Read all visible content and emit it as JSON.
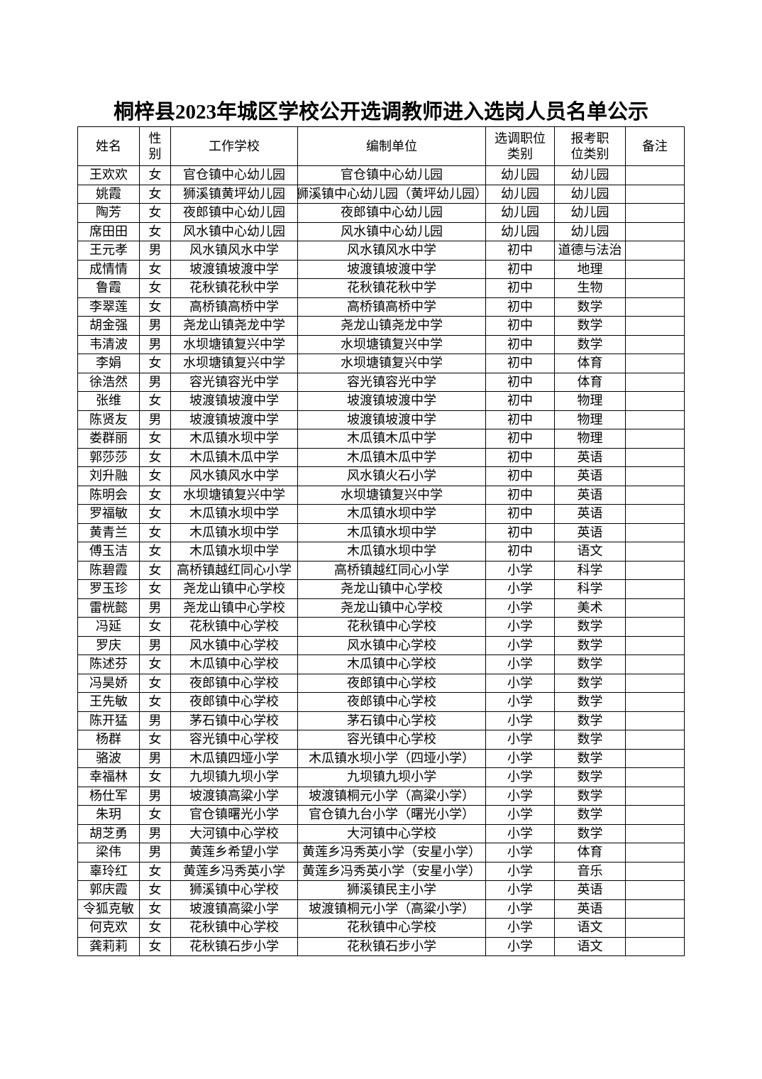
{
  "title": "桐梓县2023年城区学校公开选调教师进入选岗人员名单公示",
  "headers": [
    "姓名",
    "性别",
    "工作学校",
    "编制单位",
    "选调职位类别",
    "报考职位类别",
    "备注"
  ],
  "rows": [
    [
      "王欢欢",
      "女",
      "官仓镇中心幼儿园",
      "官仓镇中心幼儿园",
      "幼儿园",
      "幼儿园",
      ""
    ],
    [
      "姚霞",
      "女",
      "狮溪镇黄坪幼儿园",
      "狮溪镇中心幼儿园（黄坪幼儿园）",
      "幼儿园",
      "幼儿园",
      ""
    ],
    [
      "陶芳",
      "女",
      "夜郎镇中心幼儿园",
      "夜郎镇中心幼儿园",
      "幼儿园",
      "幼儿园",
      ""
    ],
    [
      "席田田",
      "女",
      "风水镇中心幼儿园",
      "风水镇中心幼儿园",
      "幼儿园",
      "幼儿园",
      ""
    ],
    [
      "王元孝",
      "男",
      "风水镇风水中学",
      "风水镇风水中学",
      "初中",
      "道德与法治",
      ""
    ],
    [
      "成情情",
      "女",
      "坡渡镇坡渡中学",
      "坡渡镇坡渡中学",
      "初中",
      "地理",
      ""
    ],
    [
      "鲁霞",
      "女",
      "花秋镇花秋中学",
      "花秋镇花秋中学",
      "初中",
      "生物",
      ""
    ],
    [
      "李翠莲",
      "女",
      "高桥镇高桥中学",
      "高桥镇高桥中学",
      "初中",
      "数学",
      ""
    ],
    [
      "胡金强",
      "男",
      "尧龙山镇尧龙中学",
      "尧龙山镇尧龙中学",
      "初中",
      "数学",
      ""
    ],
    [
      "韦清波",
      "男",
      "水坝塘镇复兴中学",
      "水坝塘镇复兴中学",
      "初中",
      "数学",
      ""
    ],
    [
      "李娟",
      "女",
      "水坝塘镇复兴中学",
      "水坝塘镇复兴中学",
      "初中",
      "体育",
      ""
    ],
    [
      "徐浩然",
      "男",
      "容光镇容光中学",
      "容光镇容光中学",
      "初中",
      "体育",
      ""
    ],
    [
      "张维",
      "女",
      "坡渡镇坡渡中学",
      "坡渡镇坡渡中学",
      "初中",
      "物理",
      ""
    ],
    [
      "陈贤友",
      "男",
      "坡渡镇坡渡中学",
      "坡渡镇坡渡中学",
      "初中",
      "物理",
      ""
    ],
    [
      "娄群丽",
      "女",
      "木瓜镇水坝中学",
      "木瓜镇木瓜中学",
      "初中",
      "物理",
      ""
    ],
    [
      "郭莎莎",
      "女",
      "木瓜镇木瓜中学",
      "木瓜镇木瓜中学",
      "初中",
      "英语",
      ""
    ],
    [
      "刘升融",
      "女",
      "风水镇风水中学",
      "风水镇火石小学",
      "初中",
      "英语",
      ""
    ],
    [
      "陈明会",
      "女",
      "水坝塘镇复兴中学",
      "水坝塘镇复兴中学",
      "初中",
      "英语",
      ""
    ],
    [
      "罗福敏",
      "女",
      "木瓜镇水坝中学",
      "木瓜镇水坝中学",
      "初中",
      "英语",
      ""
    ],
    [
      "黄青兰",
      "女",
      "木瓜镇水坝中学",
      "木瓜镇水坝中学",
      "初中",
      "英语",
      ""
    ],
    [
      "傅玉洁",
      "女",
      "木瓜镇水坝中学",
      "木瓜镇水坝中学",
      "初中",
      "语文",
      ""
    ],
    [
      "陈碧霞",
      "女",
      "高桥镇越红同心小学",
      "高桥镇越红同心小学",
      "小学",
      "科学",
      ""
    ],
    [
      "罗玉珍",
      "女",
      "尧龙山镇中心学校",
      "尧龙山镇中心学校",
      "小学",
      "科学",
      ""
    ],
    [
      "雷桄懿",
      "男",
      "尧龙山镇中心学校",
      "尧龙山镇中心学校",
      "小学",
      "美术",
      ""
    ],
    [
      "冯延",
      "女",
      "花秋镇中心学校",
      "花秋镇中心学校",
      "小学",
      "数学",
      ""
    ],
    [
      "罗庆",
      "男",
      "风水镇中心学校",
      "风水镇中心学校",
      "小学",
      "数学",
      ""
    ],
    [
      "陈述芬",
      "女",
      "木瓜镇中心学校",
      "木瓜镇中心学校",
      "小学",
      "数学",
      ""
    ],
    [
      "冯昊娇",
      "女",
      "夜郎镇中心学校",
      "夜郎镇中心学校",
      "小学",
      "数学",
      ""
    ],
    [
      "王先敏",
      "女",
      "夜郎镇中心学校",
      "夜郎镇中心学校",
      "小学",
      "数学",
      ""
    ],
    [
      "陈开猛",
      "男",
      "茅石镇中心学校",
      "茅石镇中心学校",
      "小学",
      "数学",
      ""
    ],
    [
      "杨群",
      "女",
      "容光镇中心学校",
      "容光镇中心学校",
      "小学",
      "数学",
      ""
    ],
    [
      "骆波",
      "男",
      "木瓜镇四垭小学",
      "木瓜镇水坝小学（四垭小学）",
      "小学",
      "数学",
      ""
    ],
    [
      "幸福林",
      "女",
      "九坝镇九坝小学",
      "九坝镇九坝小学",
      "小学",
      "数学",
      ""
    ],
    [
      "杨仕军",
      "男",
      "坡渡镇高粱小学",
      "坡渡镇桐元小学（高粱小学）",
      "小学",
      "数学",
      ""
    ],
    [
      "朱玥",
      "女",
      "官仓镇曙光小学",
      "官仓镇九台小学（曙光小学）",
      "小学",
      "数学",
      ""
    ],
    [
      "胡芝勇",
      "男",
      "大河镇中心学校",
      "大河镇中心学校",
      "小学",
      "数学",
      ""
    ],
    [
      "梁伟",
      "男",
      "黄莲乡希望小学",
      "黄莲乡冯秀英小学（安星小学）",
      "小学",
      "体育",
      ""
    ],
    [
      "辜玲红",
      "女",
      "黄莲乡冯秀英小学",
      "黄莲乡冯秀英小学（安星小学）",
      "小学",
      "音乐",
      ""
    ],
    [
      "郭庆霞",
      "女",
      "狮溪镇中心学校",
      "狮溪镇民主小学",
      "小学",
      "英语",
      ""
    ],
    [
      "令狐克敏",
      "女",
      "坡渡镇高粱小学",
      "坡渡镇桐元小学（高粱小学）",
      "小学",
      "英语",
      ""
    ],
    [
      "何克欢",
      "女",
      "花秋镇中心学校",
      "花秋镇中心学校",
      "小学",
      "语文",
      ""
    ],
    [
      "龚莉莉",
      "女",
      "花秋镇石步小学",
      "花秋镇石步小学",
      "小学",
      "语文",
      ""
    ]
  ]
}
